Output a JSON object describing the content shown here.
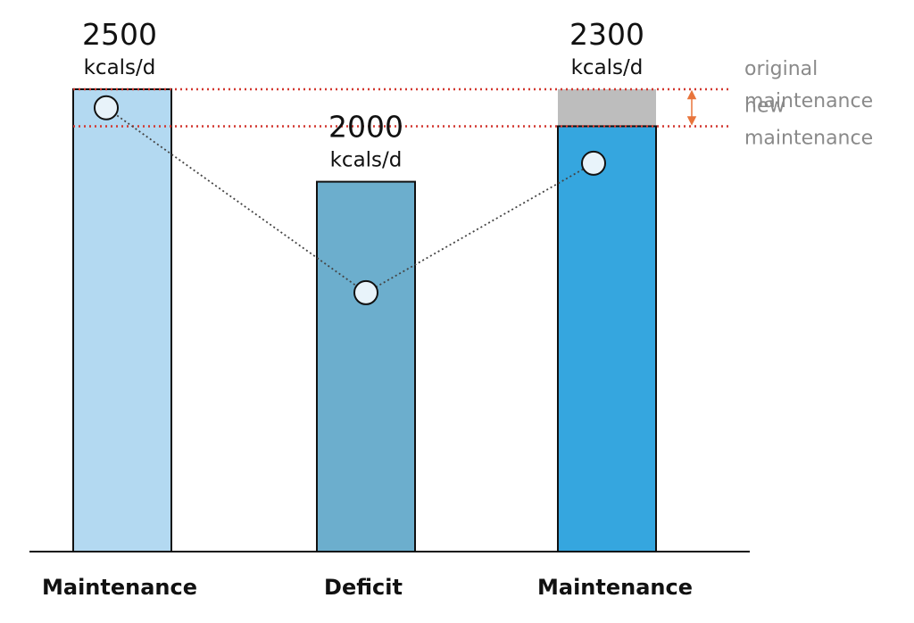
{
  "chart_data": {
    "type": "bar",
    "title": "",
    "xlabel": "",
    "ylabel": "",
    "ylim": [
      0,
      2500
    ],
    "categories": [
      "Maintenance",
      "Deficit",
      "Maintenance"
    ],
    "values": [
      2500,
      2000,
      2300
    ],
    "value_labels": [
      "2500",
      "2000",
      "2300"
    ],
    "unit_label": "kcals/d",
    "bar_colors": [
      "#b3d9f1",
      "#6caecd",
      "#35a6df"
    ],
    "reduction_color": "#bdbdbd",
    "trend_points": [
      2400,
      1400,
      2100
    ],
    "reference_lines": [
      {
        "value": 2500,
        "label_lines": [
          "original",
          "maintenance"
        ],
        "color": "#d2372f"
      },
      {
        "value": 2300,
        "label_lines": [
          "new",
          "maintenance"
        ],
        "color": "#d2372f"
      }
    ],
    "arrow_color": "#e8743b",
    "grid": false,
    "legend": "none"
  }
}
